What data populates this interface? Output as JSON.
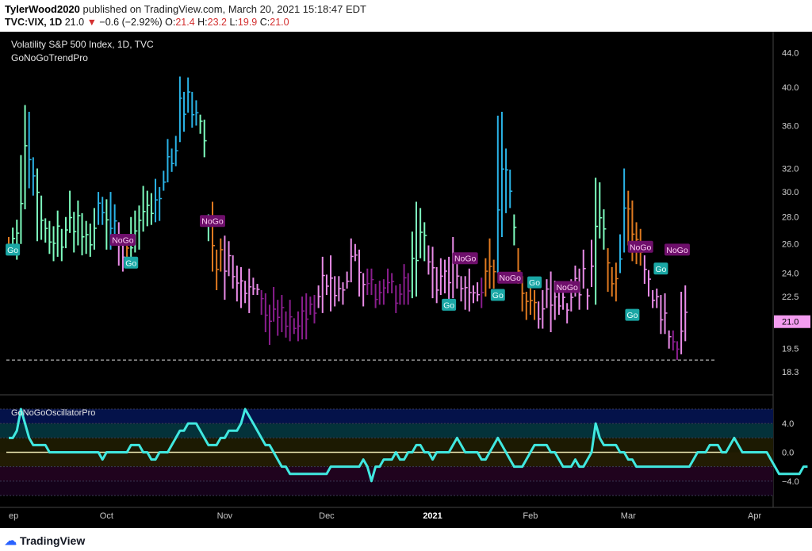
{
  "header": {
    "author": "TylerWood2020",
    "published_text": "published on TradingView.com, March 20, 2021 15:18:47 EDT",
    "symbol": "TVC:VIX, 1D",
    "last": "21.0",
    "change": "−0.6 (−2.92%)",
    "o_label": "O:",
    "o": "21.4",
    "h_label": "H:",
    "h": "23.2",
    "l_label": "L:",
    "l": "19.9",
    "c_label": "C:",
    "c": "21.0"
  },
  "chart_title": "Volatility S&P 500 Index, 1D, TVC",
  "indicator_name": "GoNoGoTrendPro",
  "oscillator_name": "GoNoGoOscillatorPro",
  "footer": {
    "brand": "TradingView"
  },
  "colors": {
    "aqua": "#2ab3e6",
    "mint": "#7fffc0",
    "pink": "#ea8ce8",
    "purple": "#8a1e8e",
    "orange": "#e07a20",
    "osc": "#40e8e0",
    "go_label": "#1aa7a5",
    "nogo_label": "#6e0f6b"
  },
  "chart_data": {
    "type": "bar",
    "title": "Volatility S&P 500 Index, 1D, TVC",
    "y_scale": "log",
    "y_ticks": [
      44.0,
      40.0,
      36.0,
      32.0,
      30.0,
      28.0,
      26.0,
      24.0,
      22.5,
      19.5,
      18.3
    ],
    "y_tick_labels": [
      "44.0",
      "40.0",
      "36.0",
      "32.0",
      "30.0",
      "28.0",
      "26.0",
      "24.0",
      "22.5",
      "19.5",
      "18.3"
    ],
    "ylim": [
      17.4,
      46.0
    ],
    "last_value_label": "21.0",
    "last_value": 21.0,
    "reference_line": 18.9,
    "x_ticks": [
      {
        "label": "ep",
        "day": 0
      },
      {
        "label": "Oct",
        "day": 24
      },
      {
        "label": "Nov",
        "day": 53
      },
      {
        "label": "Dec",
        "day": 78
      },
      {
        "label": "2021",
        "day": 104
      },
      {
        "label": "Feb",
        "day": 128
      },
      {
        "label": "Mar",
        "day": 152
      },
      {
        "label": "Apr",
        "day": 183
      }
    ],
    "candles": [
      [
        26.5,
        25.2,
        "o"
      ],
      [
        27.2,
        25.6,
        "m"
      ],
      [
        27.8,
        24.9,
        "m"
      ],
      [
        33.2,
        26.0,
        "m"
      ],
      [
        38.1,
        28.6,
        "m"
      ],
      [
        37.4,
        30.3,
        "a"
      ],
      [
        33.0,
        29.7,
        "a"
      ],
      [
        32.0,
        26.2,
        "m"
      ],
      [
        29.7,
        26.3,
        "m"
      ],
      [
        27.9,
        26.1,
        "m"
      ],
      [
        27.7,
        25.3,
        "m"
      ],
      [
        27.3,
        24.8,
        "m"
      ],
      [
        28.5,
        25.1,
        "m"
      ],
      [
        27.1,
        24.8,
        "m"
      ],
      [
        28.0,
        25.7,
        "m"
      ],
      [
        30.1,
        26.8,
        "m"
      ],
      [
        28.4,
        25.4,
        "m"
      ],
      [
        29.3,
        25.9,
        "m"
      ],
      [
        28.3,
        25.2,
        "m"
      ],
      [
        27.7,
        25.3,
        "m"
      ],
      [
        27.5,
        25.1,
        "m"
      ],
      [
        28.7,
        25.6,
        "m"
      ],
      [
        30.0,
        27.4,
        "a"
      ],
      [
        29.6,
        27.4,
        "a"
      ],
      [
        29.4,
        25.6,
        "m"
      ],
      [
        30.0,
        25.6,
        "a"
      ],
      [
        29.0,
        26.4,
        "a"
      ],
      [
        27.6,
        24.5,
        "p"
      ],
      [
        26.4,
        24.1,
        "p"
      ],
      [
        26.6,
        24.5,
        "o"
      ],
      [
        28.0,
        24.5,
        "m"
      ],
      [
        28.5,
        25.4,
        "m"
      ],
      [
        28.9,
        25.6,
        "m"
      ],
      [
        30.5,
        26.9,
        "m"
      ],
      [
        30.1,
        27.3,
        "m"
      ],
      [
        29.9,
        27.4,
        "m"
      ],
      [
        31.1,
        27.6,
        "a"
      ],
      [
        30.4,
        27.7,
        "a"
      ],
      [
        31.8,
        30.1,
        "a"
      ],
      [
        34.7,
        30.8,
        "a"
      ],
      [
        33.8,
        31.7,
        "a"
      ],
      [
        35.0,
        32.2,
        "a"
      ],
      [
        41.2,
        34.4,
        "a"
      ],
      [
        39.5,
        35.4,
        "a"
      ],
      [
        41.1,
        37.3,
        "a"
      ],
      [
        39.5,
        35.8,
        "a"
      ],
      [
        38.6,
        36.0,
        "a"
      ],
      [
        37.1,
        35.2,
        "m"
      ],
      [
        36.6,
        33.0,
        "m"
      ],
      [
        28.2,
        26.2,
        "m"
      ],
      [
        29.2,
        24.1,
        "o"
      ],
      [
        25.6,
        22.9,
        "o"
      ],
      [
        26.4,
        24.1,
        "o"
      ],
      [
        26.6,
        22.3,
        "p"
      ],
      [
        26.2,
        23.8,
        "p"
      ],
      [
        25.2,
        23.0,
        "p"
      ],
      [
        24.5,
        22.2,
        "p"
      ],
      [
        24.4,
        21.8,
        "p"
      ],
      [
        23.5,
        22.1,
        "p"
      ],
      [
        24.3,
        21.5,
        "p"
      ],
      [
        23.7,
        22.6,
        "p"
      ],
      [
        23.3,
        22.6,
        "p"
      ],
      [
        22.9,
        21.4,
        "u"
      ],
      [
        22.7,
        20.4,
        "u"
      ],
      [
        22.0,
        19.7,
        "u"
      ],
      [
        23.1,
        21.0,
        "u"
      ],
      [
        22.3,
        20.2,
        "u"
      ],
      [
        22.6,
        20.4,
        "u"
      ],
      [
        21.6,
        20.1,
        "u"
      ],
      [
        22.3,
        19.9,
        "u"
      ],
      [
        21.2,
        20.3,
        "u"
      ],
      [
        21.6,
        19.9,
        "u"
      ],
      [
        22.5,
        20.0,
        "u"
      ],
      [
        22.7,
        20.0,
        "u"
      ],
      [
        22.5,
        21.4,
        "u"
      ],
      [
        22.6,
        20.9,
        "u"
      ],
      [
        23.2,
        21.8,
        "p"
      ],
      [
        25.1,
        21.5,
        "p"
      ],
      [
        23.9,
        22.6,
        "p"
      ],
      [
        25.2,
        21.6,
        "p"
      ],
      [
        23.8,
        21.9,
        "p"
      ],
      [
        23.8,
        22.2,
        "p"
      ],
      [
        23.4,
        22.0,
        "p"
      ],
      [
        24.1,
        23.0,
        "p"
      ],
      [
        26.4,
        23.4,
        "p"
      ],
      [
        26.0,
        24.8,
        "p"
      ],
      [
        25.6,
        22.5,
        "p"
      ],
      [
        24.0,
        21.9,
        "p"
      ],
      [
        24.3,
        22.6,
        "u"
      ],
      [
        24.3,
        22.6,
        "u"
      ],
      [
        23.3,
        21.8,
        "u"
      ],
      [
        23.5,
        22.0,
        "u"
      ],
      [
        23.6,
        22.0,
        "u"
      ],
      [
        24.3,
        22.7,
        "u"
      ],
      [
        24.0,
        22.7,
        "u"
      ],
      [
        23.2,
        21.5,
        "u"
      ],
      [
        23.3,
        22.0,
        "u"
      ],
      [
        24.6,
        22.0,
        "u"
      ],
      [
        24.0,
        22.0,
        "u"
      ],
      [
        26.9,
        22.4,
        "m"
      ],
      [
        29.2,
        22.5,
        "m"
      ],
      [
        28.7,
        25.0,
        "m"
      ],
      [
        27.6,
        24.8,
        "m"
      ],
      [
        25.9,
        23.9,
        "p"
      ],
      [
        25.8,
        22.4,
        "p"
      ],
      [
        24.4,
        22.1,
        "p"
      ],
      [
        25.0,
        22.6,
        "p"
      ],
      [
        24.9,
        22.7,
        "p"
      ],
      [
        25.1,
        22.1,
        "p"
      ],
      [
        26.5,
        22.4,
        "p"
      ],
      [
        25.3,
        23.0,
        "p"
      ],
      [
        23.8,
        22.2,
        "p"
      ],
      [
        23.8,
        21.7,
        "p"
      ],
      [
        24.3,
        21.6,
        "p"
      ],
      [
        23.2,
        22.1,
        "p"
      ],
      [
        23.4,
        22.2,
        "p"
      ],
      [
        23.7,
        21.8,
        "u"
      ],
      [
        25.0,
        22.5,
        "o"
      ],
      [
        26.4,
        23.0,
        "o"
      ],
      [
        24.9,
        23.0,
        "o"
      ],
      [
        37.0,
        24.0,
        "a"
      ],
      [
        37.4,
        26.5,
        "a"
      ],
      [
        33.8,
        28.3,
        "a"
      ],
      [
        31.9,
        28.7,
        "a"
      ],
      [
        28.2,
        25.9,
        "m"
      ],
      [
        25.7,
        23.3,
        "o"
      ],
      [
        23.8,
        21.6,
        "o"
      ],
      [
        22.8,
        21.1,
        "o"
      ],
      [
        23.4,
        21.4,
        "o"
      ],
      [
        22.9,
        21.1,
        "o"
      ],
      [
        22.2,
        20.6,
        "p"
      ],
      [
        22.9,
        20.6,
        "p"
      ],
      [
        23.6,
        21.8,
        "p"
      ],
      [
        24.1,
        20.4,
        "p"
      ],
      [
        23.5,
        21.1,
        "p"
      ],
      [
        22.9,
        21.4,
        "p"
      ],
      [
        23.2,
        21.7,
        "p"
      ],
      [
        22.1,
        20.9,
        "p"
      ],
      [
        23.6,
        21.6,
        "p"
      ],
      [
        24.5,
        22.5,
        "p"
      ],
      [
        24.3,
        21.7,
        "p"
      ],
      [
        25.6,
        23.0,
        "p"
      ],
      [
        23.0,
        21.7,
        "p"
      ],
      [
        26.3,
        23.1,
        "p"
      ],
      [
        31.2,
        22.0,
        "m"
      ],
      [
        30.8,
        26.4,
        "m"
      ],
      [
        28.6,
        25.6,
        "m"
      ],
      [
        25.7,
        22.8,
        "o"
      ],
      [
        24.4,
        22.5,
        "o"
      ],
      [
        24.7,
        22.2,
        "o"
      ],
      [
        26.7,
        24.0,
        "a"
      ],
      [
        32.0,
        25.4,
        "a"
      ],
      [
        30.1,
        25.9,
        "o"
      ],
      [
        29.3,
        24.8,
        "o"
      ],
      [
        27.6,
        24.6,
        "o"
      ],
      [
        27.1,
        24.5,
        "o"
      ],
      [
        25.2,
        23.3,
        "p"
      ],
      [
        24.2,
        22.5,
        "p"
      ],
      [
        22.9,
        21.8,
        "p"
      ],
      [
        23.0,
        21.8,
        "p"
      ],
      [
        22.6,
        20.3,
        "p"
      ],
      [
        22.7,
        20.3,
        "p"
      ],
      [
        20.5,
        19.5,
        "p"
      ],
      [
        20.5,
        19.4,
        "u"
      ],
      [
        19.9,
        18.9,
        "u"
      ],
      [
        22.8,
        19.2,
        "p"
      ],
      [
        23.2,
        19.9,
        "p"
      ]
    ],
    "markers": [
      {
        "text": "Go",
        "day": 1,
        "price": 25.6,
        "kind": "go"
      },
      {
        "text": "NoGo",
        "day": 28,
        "price": 26.3,
        "kind": "nogo"
      },
      {
        "text": "Go",
        "day": 30,
        "price": 24.7,
        "kind": "go"
      },
      {
        "text": "NoGo",
        "day": 50,
        "price": 27.7,
        "kind": "nogo"
      },
      {
        "text": "Go",
        "day": 108,
        "price": 22.0,
        "kind": "go"
      },
      {
        "text": "NoGo",
        "day": 112,
        "price": 25.0,
        "kind": "nogo"
      },
      {
        "text": "Go",
        "day": 120,
        "price": 22.6,
        "kind": "go"
      },
      {
        "text": "NoGo",
        "day": 123,
        "price": 23.7,
        "kind": "nogo"
      },
      {
        "text": "Go",
        "day": 129,
        "price": 23.4,
        "kind": "go"
      },
      {
        "text": "NoGo",
        "day": 137,
        "price": 23.1,
        "kind": "nogo"
      },
      {
        "text": "Go",
        "day": 153,
        "price": 21.4,
        "kind": "go"
      },
      {
        "text": "NoGo",
        "day": 155,
        "price": 25.8,
        "kind": "nogo"
      },
      {
        "text": "Go",
        "day": 160,
        "price": 24.3,
        "kind": "go"
      },
      {
        "text": "NoGo",
        "day": 164,
        "price": 25.6,
        "kind": "nogo"
      }
    ],
    "oscillator": {
      "title": "GoNoGoOscillatorPro",
      "y_ticks": [
        4.0,
        0.0,
        -4.0
      ],
      "y_tick_labels": [
        "4.0",
        "0.0",
        "−4.0"
      ],
      "ylim": [
        -6.0,
        6.0
      ],
      "zero_line": 0.0,
      "values": [
        2,
        2,
        3,
        6,
        4,
        2,
        1,
        1,
        1,
        1,
        0,
        0,
        0,
        0,
        0,
        0,
        0,
        0,
        0,
        0,
        0,
        0,
        0,
        -1,
        0,
        0,
        0,
        0,
        0,
        0,
        1,
        1,
        1,
        0,
        0,
        -1,
        -1,
        0,
        0,
        0,
        1,
        2,
        3,
        3,
        4,
        4,
        4,
        3,
        2,
        1,
        1,
        1,
        2,
        2,
        3,
        3,
        3,
        4,
        6,
        5,
        4,
        3,
        2,
        1,
        1,
        0,
        -1,
        -2,
        -2,
        -3,
        -3,
        -3,
        -3,
        -3,
        -3,
        -3,
        -3,
        -3,
        -3,
        -2,
        -2,
        -2,
        -2,
        -2,
        -2,
        -2,
        -2,
        -1,
        -2,
        -4,
        -2,
        -2,
        -1,
        -1,
        -1,
        0,
        -1,
        -1,
        0,
        0,
        1,
        1,
        0,
        0,
        -1,
        0,
        0,
        0,
        0,
        1,
        2,
        1,
        0,
        0,
        0,
        0,
        -1,
        -1,
        0,
        1,
        2,
        1,
        0,
        -1,
        -2,
        -2,
        -2,
        -1,
        0,
        1,
        1,
        1,
        1,
        0,
        0,
        -1,
        -2,
        -2,
        -2,
        -1,
        -2,
        -2,
        -1,
        0,
        4,
        2,
        1,
        1,
        1,
        1,
        0,
        0,
        -1,
        -1,
        -2,
        -2,
        -2,
        -2,
        -2,
        -2,
        -2,
        -2,
        -2,
        -2,
        -2,
        -2,
        -2,
        -2,
        -1,
        0,
        0,
        0,
        1,
        1,
        1,
        0,
        0,
        1,
        2,
        1,
        0,
        0,
        0,
        0,
        0,
        0,
        0,
        -1,
        -2,
        -3,
        -3,
        -3,
        -3,
        -3,
        -3,
        -2,
        -2
      ]
    }
  }
}
